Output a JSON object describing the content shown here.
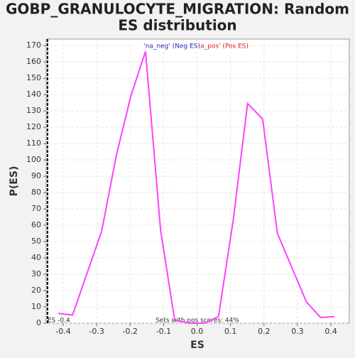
{
  "chart_data": {
    "type": "line",
    "title": [
      "GOBP_GRANULOCYTE_MIGRATION: Random",
      "ES distribution"
    ],
    "x_label": "ES",
    "y_label": "P(ES)",
    "series": [
      {
        "name": "'na_neg' (Neg ES)",
        "color": "#2020c0",
        "values": []
      },
      {
        "name": "'na_pos' (Pos ES)",
        "color": "#e02020",
        "values": []
      },
      {
        "name": null,
        "color": "#ff40ff",
        "x": [
          -0.415,
          -0.372,
          -0.285,
          -0.241,
          -0.198,
          -0.154,
          -0.109,
          -0.067,
          -0.022,
          0.021,
          0.064,
          0.108,
          0.151,
          0.196,
          0.24,
          0.327,
          0.369,
          0.411
        ],
        "values": [
          6,
          5,
          56.5,
          103,
          139,
          166.5,
          57,
          2,
          0,
          0,
          4,
          63,
          134.5,
          125,
          55,
          13,
          3.5,
          4
        ]
      }
    ],
    "marker_x": -0.447,
    "annotations": [
      "ES -0.4",
      "Sets with pos scores: 44%"
    ],
    "xlim": [
      -0.451,
      0.455
    ],
    "ylim": [
      0,
      174
    ],
    "xticks": [
      -0.4,
      -0.3,
      -0.2,
      -0.1,
      {
        "value": 0,
        "label": "0.0"
      },
      0.1,
      0.2,
      0.3,
      0.4
    ],
    "yticks": [
      0,
      10,
      20,
      30,
      40,
      50,
      60,
      70,
      80,
      90,
      100,
      110,
      120,
      130,
      140,
      150,
      160,
      170
    ],
    "grid": true
  }
}
